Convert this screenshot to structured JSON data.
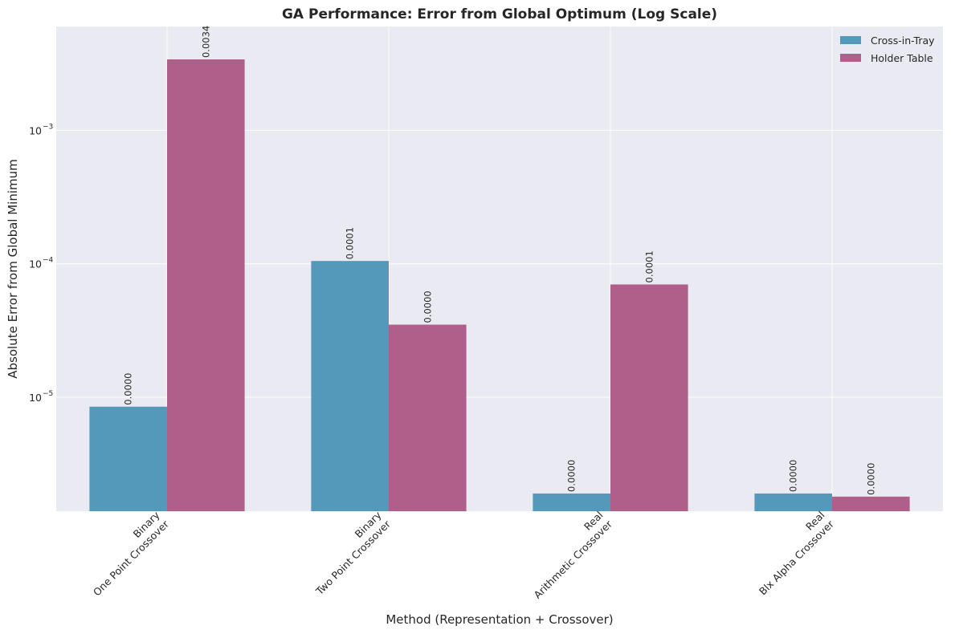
{
  "chart_data": {
    "type": "bar",
    "title": "GA Performance: Error from Global Optimum (Log Scale)",
    "xlabel": "Method (Representation + Crossover)",
    "ylabel": "Absolute Error from Global Minimum",
    "yscale": "log",
    "ylim": [
      1.4e-06,
      0.006
    ],
    "yticks": [
      {
        "value": 1e-05,
        "base": "10",
        "exp": "−5"
      },
      {
        "value": 0.0001,
        "base": "10",
        "exp": "−4"
      },
      {
        "value": 0.001,
        "base": "10",
        "exp": "−3"
      }
    ],
    "categories": [
      [
        "Binary",
        "One Point Crossover"
      ],
      [
        "Binary",
        "Two Point Crossover"
      ],
      [
        "Real",
        "Arithmetic Crossover"
      ],
      [
        "Real",
        "Blx Alpha Crossover"
      ]
    ],
    "series": [
      {
        "name": "Cross-in-Tray",
        "color": "#5499b9",
        "values": [
          8.5e-06,
          0.000105,
          1.9e-06,
          1.9e-06
        ],
        "labels": [
          "0.0000",
          "0.0001",
          "0.0000",
          "0.0000"
        ]
      },
      {
        "name": "Holder Table",
        "color": "#b05e8a",
        "values": [
          0.0034,
          3.5e-05,
          7e-05,
          1.8e-06
        ],
        "labels": [
          "0.0034",
          "0.0000",
          "0.0001",
          "0.0000"
        ]
      }
    ],
    "grid": true,
    "legend_position": "top-right",
    "background": "#eaeaf2"
  }
}
